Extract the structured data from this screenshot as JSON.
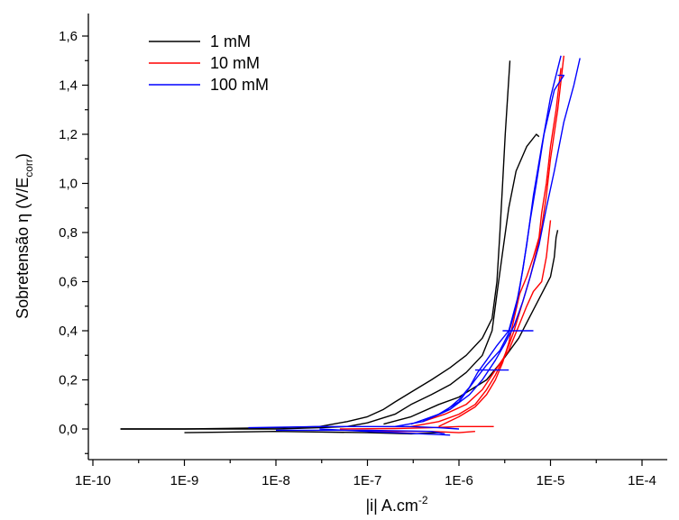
{
  "chart_data": {
    "type": "line",
    "x_scale": "log",
    "xlim": [
      "1E-10",
      "1E-4"
    ],
    "ylim": [
      -0.1,
      1.65
    ],
    "ylabel_parts": {
      "main": "Sobretensão η (V/E",
      "sub": "corr",
      "close": ")"
    },
    "xlabel_parts": {
      "main": "|i| A.cm",
      "sup": "-2"
    },
    "x_ticks": [
      "1E-10",
      "1E-9",
      "1E-8",
      "1E-7",
      "1E-6",
      "1E-5",
      "1E-4"
    ],
    "y_ticks": [
      "0,0",
      "0,2",
      "0,4",
      "0,6",
      "0,8",
      "1,0",
      "1,2",
      "1,4",
      "1,6"
    ],
    "legend_position": "top-left",
    "grid": false,
    "series": [
      {
        "name": "1 mM",
        "color": "#000000",
        "curves": [
          [
            [
              2e-10,
              0.0
            ],
            [
              1e-09,
              0.0
            ],
            [
              1e-08,
              0.005
            ],
            [
              3e-08,
              0.01
            ],
            [
              6e-08,
              0.03
            ],
            [
              1e-07,
              0.05
            ],
            [
              1.5e-07,
              0.08
            ],
            [
              2e-07,
              0.11
            ],
            [
              3e-07,
              0.15
            ],
            [
              5e-07,
              0.2
            ],
            [
              8e-07,
              0.25
            ],
            [
              1.2e-06,
              0.3
            ],
            [
              1.8e-06,
              0.37
            ],
            [
              2.3e-06,
              0.45
            ],
            [
              2.6e-06,
              0.6
            ],
            [
              2.8e-06,
              0.8
            ],
            [
              3e-06,
              1.0
            ],
            [
              3.2e-06,
              1.2
            ],
            [
              3.4e-06,
              1.35
            ],
            [
              3.6e-06,
              1.5
            ]
          ],
          [
            [
              2e-10,
              0.0
            ],
            [
              1e-09,
              0.0
            ],
            [
              1e-08,
              0.0
            ],
            [
              3e-08,
              0.005
            ],
            [
              6e-08,
              0.01
            ],
            [
              1e-07,
              0.025
            ],
            [
              2e-07,
              0.06
            ],
            [
              3e-07,
              0.1
            ],
            [
              5e-07,
              0.14
            ],
            [
              8e-07,
              0.18
            ],
            [
              1.2e-06,
              0.23
            ],
            [
              1.8e-06,
              0.3
            ],
            [
              2.3e-06,
              0.4
            ],
            [
              2.6e-06,
              0.55
            ],
            [
              3e-06,
              0.72
            ],
            [
              3.5e-06,
              0.9
            ],
            [
              4.2e-06,
              1.05
            ],
            [
              5.5e-06,
              1.15
            ],
            [
              7e-06,
              1.2
            ],
            [
              7.5e-06,
              1.19
            ]
          ],
          [
            [
              1.5e-07,
              0.02
            ],
            [
              3e-07,
              0.05
            ],
            [
              6e-07,
              0.1
            ],
            [
              1e-06,
              0.13
            ],
            [
              2e-06,
              0.2
            ],
            [
              3e-06,
              0.28
            ],
            [
              4.5e-06,
              0.37
            ],
            [
              6e-06,
              0.46
            ],
            [
              8e-06,
              0.55
            ],
            [
              1e-05,
              0.62
            ],
            [
              1.1e-05,
              0.7
            ],
            [
              1.15e-05,
              0.78
            ],
            [
              1.2e-05,
              0.81
            ]
          ],
          [
            [
              1e-09,
              -0.015
            ],
            [
              1e-08,
              -0.01
            ],
            [
              1e-07,
              -0.015
            ],
            [
              3e-07,
              -0.02
            ],
            [
              6e-07,
              -0.015
            ]
          ]
        ]
      },
      {
        "name": "10 mM",
        "color": "#ff0000",
        "curves": [
          [
            [
              5e-08,
              0.0
            ],
            [
              2e-07,
              0.002
            ],
            [
              5e-07,
              0.005
            ],
            [
              1e-06,
              0.01
            ],
            [
              2.4e-06,
              0.01
            ]
          ],
          [
            [
              1e-07,
              -0.01
            ],
            [
              5e-07,
              -0.01
            ],
            [
              1e-06,
              -0.015
            ],
            [
              1.5e-06,
              -0.01
            ]
          ],
          [
            [
              3e-07,
              0.01
            ],
            [
              6e-07,
              0.03
            ],
            [
              1e-06,
              0.06
            ],
            [
              1.5e-06,
              0.1
            ],
            [
              2e-06,
              0.16
            ],
            [
              2.5e-06,
              0.22
            ],
            [
              3e-06,
              0.28
            ],
            [
              3.5e-06,
              0.34
            ],
            [
              4e-06,
              0.4
            ],
            [
              5e-06,
              0.52
            ],
            [
              6e-06,
              0.62
            ],
            [
              7e-06,
              0.72
            ],
            [
              8e-06,
              0.82
            ],
            [
              9e-06,
              0.95
            ],
            [
              1e-05,
              1.1
            ],
            [
              1.2e-05,
              1.3
            ],
            [
              1.4e-05,
              1.52
            ]
          ],
          [
            [
              6e-07,
              0.01
            ],
            [
              1e-06,
              0.05
            ],
            [
              1.5e-06,
              0.09
            ],
            [
              2e-06,
              0.14
            ],
            [
              2.5e-06,
              0.2
            ],
            [
              3e-06,
              0.27
            ],
            [
              3.5e-06,
              0.35
            ],
            [
              4e-06,
              0.45
            ],
            [
              4.6e-06,
              0.55
            ],
            [
              5.5e-06,
              0.62
            ],
            [
              6.5e-06,
              0.7
            ],
            [
              7.5e-06,
              0.78
            ],
            [
              8e-06,
              0.88
            ],
            [
              9e-06,
              1.0
            ],
            [
              1e-05,
              1.15
            ],
            [
              1.15e-05,
              1.3
            ],
            [
              1.3e-05,
              1.47
            ]
          ],
          [
            [
              4e-07,
              0.03
            ],
            [
              7e-07,
              0.06
            ],
            [
              1.2e-06,
              0.1
            ],
            [
              1.8e-06,
              0.16
            ],
            [
              2.5e-06,
              0.24
            ],
            [
              3.5e-06,
              0.32
            ],
            [
              4.5e-06,
              0.42
            ],
            [
              5.5e-06,
              0.5
            ],
            [
              6.5e-06,
              0.56
            ],
            [
              8e-06,
              0.6
            ],
            [
              9e-06,
              0.7
            ],
            [
              1e-05,
              0.85
            ]
          ]
        ]
      },
      {
        "name": "100 mM",
        "color": "#0000ff",
        "curves": [
          [
            [
              5e-09,
              0.005
            ],
            [
              3e-08,
              0.01
            ],
            [
              1e-07,
              0.01
            ],
            [
              3e-07,
              0.01
            ],
            [
              6e-07,
              0.005
            ],
            [
              1e-06,
              0.0
            ]
          ],
          [
            [
              1e-08,
              -0.005
            ],
            [
              1e-07,
              -0.005
            ],
            [
              5e-07,
              -0.01
            ],
            [
              7e-07,
              -0.02
            ]
          ],
          [
            [
              3e-08,
              0.0
            ],
            [
              1e-07,
              -0.01
            ],
            [
              4e-07,
              -0.02
            ],
            [
              8e-07,
              -0.025
            ]
          ],
          [
            [
              2e-07,
              0.01
            ],
            [
              4e-07,
              0.03
            ],
            [
              7e-07,
              0.07
            ],
            [
              1e-06,
              0.12
            ],
            [
              1.3e-06,
              0.17
            ],
            [
              1.6e-06,
              0.23
            ],
            [
              2e-06,
              0.28
            ],
            [
              2.6e-06,
              0.34
            ],
            [
              3.5e-06,
              0.4
            ],
            [
              4.5e-06,
              0.55
            ],
            [
              5.5e-06,
              0.75
            ],
            [
              6.5e-06,
              0.95
            ],
            [
              8e-06,
              1.15
            ],
            [
              1e-05,
              1.35
            ],
            [
              1.3e-05,
              1.52
            ]
          ],
          [
            [
              3e-07,
              0.02
            ],
            [
              6e-07,
              0.06
            ],
            [
              1e-06,
              0.11
            ],
            [
              1.5e-06,
              0.2
            ],
            [
              2e-06,
              0.26
            ],
            [
              2.8e-06,
              0.32
            ],
            [
              3.5e-06,
              0.39
            ],
            [
              4.2e-06,
              0.5
            ],
            [
              5e-06,
              0.65
            ],
            [
              6e-06,
              0.85
            ],
            [
              7e-06,
              1.0
            ],
            [
              8.5e-06,
              1.2
            ],
            [
              1.1e-05,
              1.38
            ],
            [
              1.4e-05,
              1.44
            ],
            [
              1.2e-05,
              1.44
            ]
          ],
          [
            [
              4e-07,
              0.03
            ],
            [
              8e-07,
              0.08
            ],
            [
              1.3e-06,
              0.14
            ],
            [
              1.8e-06,
              0.2
            ],
            [
              2.5e-06,
              0.28
            ],
            [
              3.2e-06,
              0.35
            ],
            [
              4e-06,
              0.42
            ],
            [
              5e-06,
              0.52
            ],
            [
              6e-06,
              0.62
            ],
            [
              7.5e-06,
              0.75
            ],
            [
              9e-06,
              0.9
            ],
            [
              1.1e-05,
              1.05
            ],
            [
              1.4e-05,
              1.25
            ],
            [
              1.8e-05,
              1.4
            ],
            [
              2.1e-05,
              1.51
            ]
          ],
          [
            [
              3e-06,
              0.4
            ],
            [
              6.5e-06,
              0.4
            ]
          ],
          [
            [
              1.5e-06,
              0.24
            ],
            [
              3.5e-06,
              0.24
            ]
          ]
        ]
      }
    ]
  }
}
